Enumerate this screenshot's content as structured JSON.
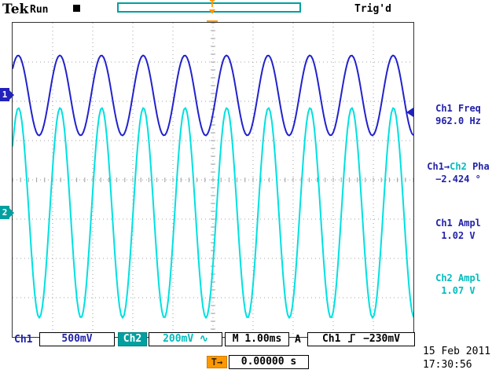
{
  "header": {
    "logo": "Tek",
    "acq_status": "Run",
    "trigger_status": "Trig'd"
  },
  "icons": {
    "trigger_t": "T",
    "arrow_right": "→",
    "coupling_sine": "∿",
    "rising_edge": "rising-edge"
  },
  "channels": {
    "ch1_marker": "1",
    "ch2_marker": "2"
  },
  "measurements": {
    "freq": {
      "label": "Ch1 Freq",
      "value": "962.0 Hz"
    },
    "phase": {
      "label_part1": "Ch1→",
      "label_part2": "Ch2",
      "label_part3": " Pha",
      "value": "−2.424 °"
    },
    "ch1_ampl": {
      "label": "Ch1 Ampl",
      "value": "1.02 V"
    },
    "ch2_ampl": {
      "label": "Ch2 Ampl",
      "value": "1.07 V"
    }
  },
  "status_bar": {
    "ch1_label": "Ch1",
    "ch1_scale": "500mV",
    "ch2_label": "Ch2",
    "ch2_scale": "200mV",
    "timebase": "M 1.00ms",
    "trigger_bus": "A",
    "trigger_source": "Ch1",
    "trigger_level": "−230mV"
  },
  "footer": {
    "delay_value": "0.00000 s",
    "date": "15 Feb 2011",
    "time": "17:30:56"
  },
  "colors": {
    "ch1_trace": "#2222cc",
    "ch1_text": "#2222aa",
    "ch2_trace": "#00e0e0",
    "ch2_text": "#00bcbc",
    "teal_ui": "#00a0a0",
    "trigger_orange": "#ff9800"
  },
  "chart_data": {
    "type": "line",
    "title": "Oscilloscope traces: Ch1 and Ch2 sine waves",
    "x": {
      "divisions": 10,
      "seconds_per_div": 0.001,
      "label": "M 1.00ms"
    },
    "y": {
      "divisions": 8
    },
    "grid": "dotted, 10x8 divisions, center axes with 1/5-div ticks",
    "series": [
      {
        "name": "Ch2",
        "color": "#00e0e0",
        "volts_per_div": 0.2,
        "amplitude_pp_v": 1.07,
        "frequency_hz": 962.0,
        "center_div_from_top": 4.84,
        "phase_left_deg": 39.2
      },
      {
        "name": "Ch1",
        "color": "#2222cc",
        "volts_per_div": 0.5,
        "amplitude_pp_v": 1.02,
        "frequency_hz": 962.0,
        "center_div_from_top": 1.85,
        "phase_left_deg": 41.6
      }
    ],
    "trigger": {
      "source": "Ch1",
      "level_v": -0.23,
      "slope": "rising",
      "position_div": 5,
      "holdoff_readout_s": "0.00000 s"
    }
  }
}
